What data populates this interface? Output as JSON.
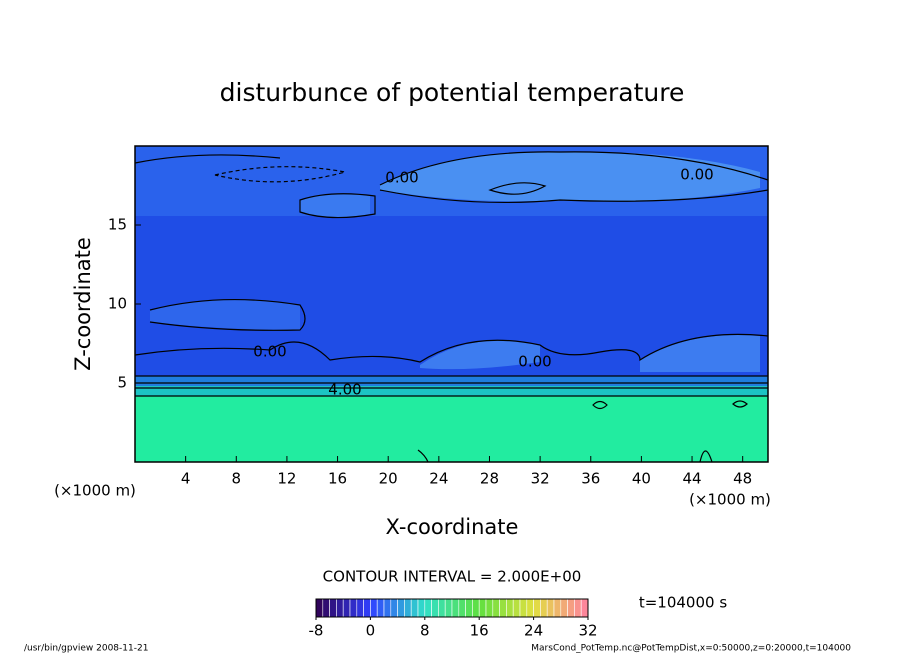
{
  "chart_data": {
    "type": "contour",
    "title": "disturbunce of potential temperature",
    "x_label": "X-coordinate",
    "y_label": "Z-coordinate",
    "x_unit": "(×1000 m)",
    "y_unit": "(×1000 m)",
    "xlim": [
      0,
      50
    ],
    "xticks": [
      4,
      8,
      12,
      16,
      20,
      24,
      28,
      32,
      36,
      40,
      44,
      48
    ],
    "ylim": [
      0,
      20
    ],
    "yticks": [
      5,
      10,
      15
    ],
    "contour_labels": [
      "0.00",
      "0.00",
      "0.00",
      "0.00",
      "4.00"
    ],
    "contour_interval": "CONTOUR INTERVAL = 2.000E+00",
    "colorbar": {
      "lim": [
        -8,
        32
      ],
      "ticks": [
        -8,
        0,
        8,
        16,
        24,
        32
      ]
    },
    "time_label": "t=104000 s"
  },
  "footer": {
    "left": "/usr/bin/gpview  2008-11-21",
    "right": "MarsCond_PotTemp.nc@PotTempDist,x=0:50000,z=0:20000,t=104000"
  }
}
